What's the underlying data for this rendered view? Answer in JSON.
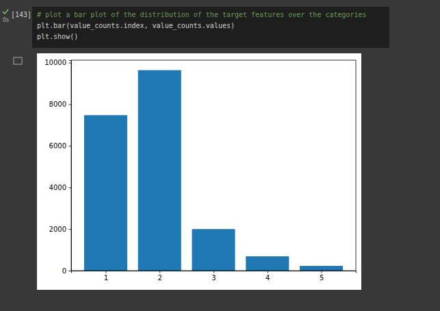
{
  "chart_data": {
    "type": "bar",
    "x": [
      1,
      2,
      3,
      4,
      5
    ],
    "values": [
      7475,
      9639,
      2000,
      689,
      230
    ],
    "color": "#1f77b4",
    "xlim": [
      0.36,
      5.64
    ],
    "xticks": [
      1,
      2,
      3,
      4,
      5
    ],
    "ylim": [
      0,
      10120
    ],
    "yticks": [
      0,
      2000,
      4000,
      6000,
      8000,
      10000
    ],
    "grid": false
  },
  "cell": {
    "execution_count": "[143]",
    "duration": "0s",
    "code": [
      "# plot a bar plot of the distribution of the target features over the categories",
      "plt.bar(value_counts.index, value_counts.values)",
      "plt.show()"
    ]
  }
}
